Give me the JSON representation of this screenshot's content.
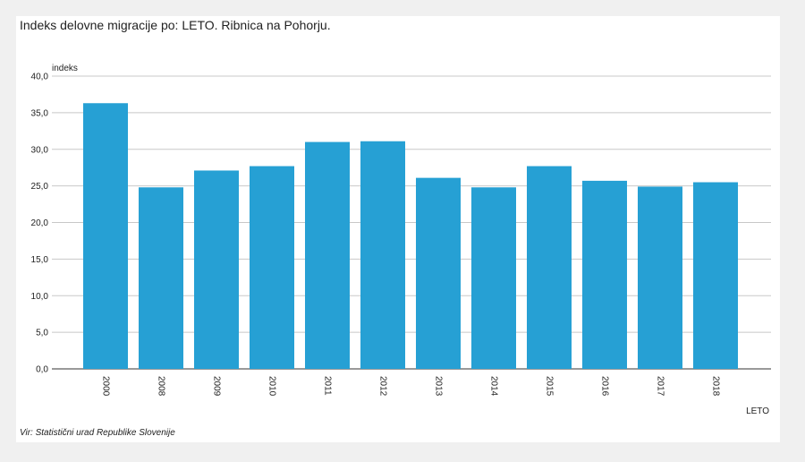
{
  "header": {
    "title": "Indeks delovne migracije po: LETO. Ribnica na Pohorju."
  },
  "footer": {
    "source": "Vir: Statistični urad Republike Slovenije"
  },
  "chart_data": {
    "type": "bar",
    "title": "Indeks delovne migracije po: LETO. Ribnica na Pohorju.",
    "xlabel": "LETO",
    "ylabel": "indeks",
    "categories": [
      "2000",
      "2008",
      "2009",
      "2010",
      "2011",
      "2012",
      "2013",
      "2014",
      "2015",
      "2016",
      "2017",
      "2018"
    ],
    "values": [
      36.3,
      24.8,
      27.1,
      27.7,
      31.0,
      31.1,
      26.1,
      24.8,
      27.7,
      25.7,
      24.9,
      25.5
    ],
    "ylim": [
      0,
      40
    ],
    "yticks": [
      "0,0",
      "5,0",
      "10,0",
      "15,0",
      "20,0",
      "25,0",
      "30,0",
      "35,0",
      "40,0"
    ],
    "ytick_values": [
      0,
      5,
      10,
      15,
      20,
      25,
      30,
      35,
      40
    ],
    "grid": true,
    "legend": "none",
    "bar_color": "#26a0d4"
  }
}
